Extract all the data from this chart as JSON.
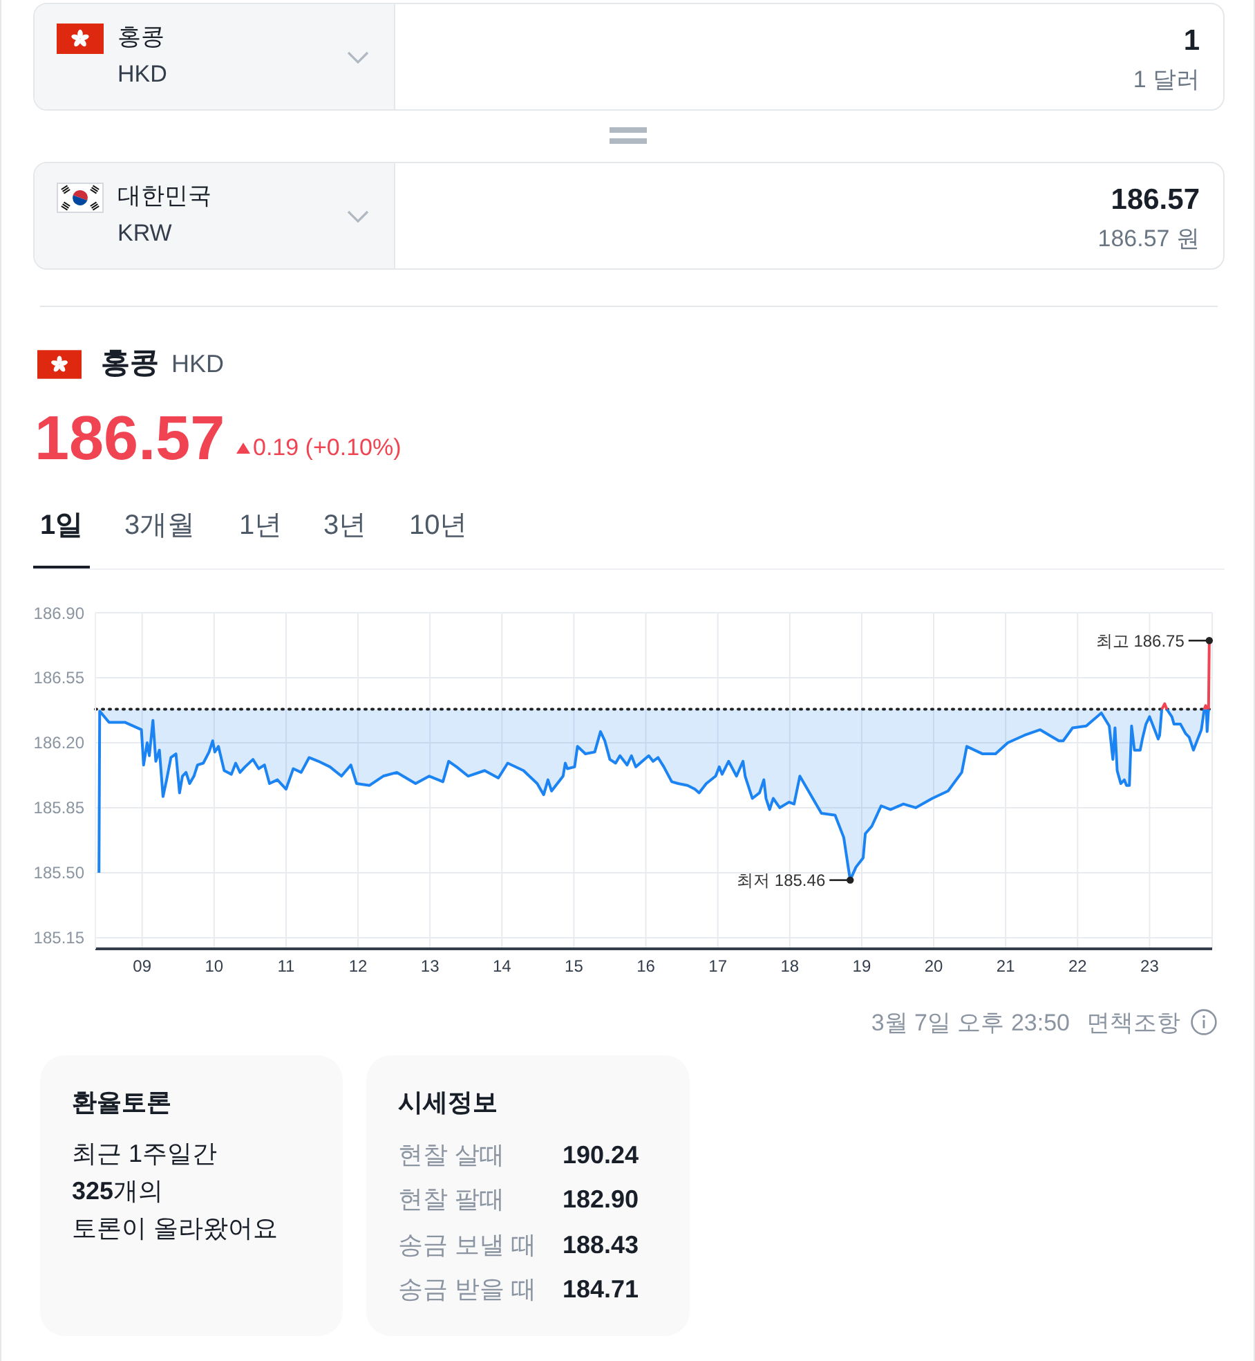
{
  "chart_data": {
    "type": "line",
    "title": "홍콩",
    "subtitle": "HKD",
    "x": [
      8.4,
      8.41,
      8.54,
      8.76,
      8.99,
      9.02,
      9.07,
      9.1,
      9.15,
      9.19,
      9.24,
      9.29,
      9.34,
      9.4,
      9.47,
      9.52,
      9.56,
      9.61,
      9.66,
      9.72,
      9.77,
      9.85,
      9.93,
      9.98,
      10.01,
      10.06,
      10.14,
      10.24,
      10.3,
      10.36,
      10.43,
      10.54,
      10.62,
      10.7,
      10.77,
      10.88,
      11,
      11.1,
      11.21,
      11.32,
      11.45,
      11.61,
      11.77,
      11.9,
      11.98,
      12.16,
      12.35,
      12.54,
      12.8,
      12.99,
      13.18,
      13.26,
      13.37,
      13.53,
      13.76,
      13.95,
      14.08,
      14.3,
      14.49,
      14.58,
      14.64,
      14.69,
      14.85,
      14.88,
      14.91,
      15.01,
      15.05,
      15.16,
      15.29,
      15.37,
      15.43,
      15.5,
      15.58,
      15.64,
      15.74,
      15.8,
      15.86,
      16.04,
      16.1,
      16.17,
      16.25,
      16.36,
      16.45,
      16.58,
      16.68,
      16.74,
      16.84,
      16.97,
      17.02,
      17.06,
      17.15,
      17.26,
      17.35,
      17.38,
      17.48,
      17.58,
      17.64,
      17.67,
      17.72,
      17.77,
      17.86,
      17.99,
      18.06,
      18.14,
      18.44,
      18.63,
      18.75,
      18.84,
      18.92,
      19.02,
      19.05,
      19.14,
      19.27,
      19.4,
      19.58,
      19.75,
      19.98,
      20.2,
      20.39,
      20.46,
      20.68,
      20.86,
      21.03,
      21.26,
      21.48,
      21.74,
      21.8,
      21.93,
      22.12,
      22.33,
      22.44,
      22.49,
      22.52,
      22.55,
      22.6,
      22.65,
      22.68,
      22.72,
      22.75,
      22.79,
      22.87,
      22.9,
      22.95,
      23,
      23.08,
      23.12,
      23.14,
      23.17,
      23.21,
      23.24,
      23.31,
      23.34,
      23.43,
      23.5,
      23.55,
      23.61,
      23.66,
      23.72,
      23.76,
      23.78,
      23.79,
      23.8,
      23.82
    ],
    "series": [
      {
        "color": "#1b84f2",
        "values": [
          185.5,
          186.37,
          186.31,
          186.31,
          186.27,
          186.08,
          186.2,
          186.13,
          186.32,
          186.1,
          186.16,
          185.91,
          186,
          186.12,
          186.14,
          185.93,
          186.02,
          186.04,
          185.98,
          186.02,
          186.08,
          186.09,
          186.15,
          186.21,
          186.15,
          186.18,
          186.05,
          186.03,
          186.09,
          186.04,
          186.07,
          186.11,
          186.06,
          186.08,
          185.98,
          186,
          185.95,
          186.06,
          186.04,
          186.12,
          186.1,
          186.07,
          186.02,
          186.08,
          185.98,
          185.97,
          186.02,
          186.04,
          185.98,
          186.02,
          185.99,
          186.1,
          186.07,
          186.02,
          186.05,
          186.01,
          186.09,
          186.05,
          185.98,
          185.92,
          186,
          185.94,
          186.02,
          186.09,
          186.06,
          186.07,
          186.18,
          186.14,
          186.15,
          186.26,
          186.21,
          186.11,
          186.09,
          186.13,
          186.08,
          186.13,
          186.07,
          186.13,
          186.1,
          186.12,
          186.07,
          185.99,
          185.98,
          185.97,
          185.95,
          185.93,
          185.98,
          186.02,
          186.07,
          186.03,
          186.1,
          186.02,
          186.1,
          186.02,
          185.9,
          185.93,
          186,
          185.9,
          185.84,
          185.9,
          185.85,
          185.88,
          185.87,
          186.02,
          185.82,
          185.81,
          185.69,
          185.46,
          185.53,
          185.58,
          185.71,
          185.75,
          185.86,
          185.84,
          185.87,
          185.85,
          185.9,
          185.94,
          186.04,
          186.18,
          186.14,
          186.14,
          186.2,
          186.24,
          186.27,
          186.21,
          186.21,
          186.28,
          186.29,
          186.36,
          186.29,
          186.11,
          186.28,
          186.05,
          185.98,
          186,
          185.97,
          185.97,
          186.29,
          186.16,
          186.16,
          186.22,
          186.3,
          186.34,
          186.26,
          186.22,
          186.24,
          186.38,
          null,
          186.38,
          186.34,
          186.3,
          186.3,
          186.25,
          186.23,
          186.16,
          186.21,
          186.27,
          186.38,
          null,
          186.38,
          186.26,
          186.38
        ],
        "lower": [
          185.5,
          186.37,
          186.31,
          186.31,
          186.27,
          186.08,
          186.2,
          186.13,
          186.32,
          186.1,
          186.16,
          185.91,
          186,
          186.12,
          186.14,
          185.93,
          186.02,
          186.04,
          185.98,
          186.02,
          186.08,
          186.09,
          186.15,
          186.21,
          186.15,
          186.18,
          186.05,
          186.03,
          186.09,
          186.04,
          186.07,
          186.11,
          186.06,
          186.08,
          185.98,
          186,
          185.95,
          186.06,
          186.04,
          186.12,
          186.1,
          186.07,
          186.02,
          186.08,
          185.98,
          185.97,
          186.02,
          186.04,
          185.98,
          186.02,
          185.99,
          186.1,
          186.07,
          186.02,
          186.05,
          186.01,
          186.09,
          186.05,
          185.98,
          185.92,
          186,
          185.94,
          186.02,
          186.09,
          186.06,
          186.07,
          186.18,
          186.14,
          186.15,
          186.26,
          186.21,
          186.11,
          186.09,
          186.13,
          186.08,
          186.13,
          186.07,
          186.13,
          186.1,
          186.12,
          186.07,
          185.99,
          185.98,
          185.97,
          185.95,
          185.93,
          185.98,
          186.02,
          186.07,
          186.03,
          186.1,
          186.02,
          186.1,
          186.02,
          185.9,
          185.93,
          186,
          185.9,
          185.84,
          185.9,
          185.85,
          185.88,
          185.87,
          186.02,
          185.82,
          185.81,
          185.69,
          185.46,
          185.53,
          185.58,
          185.71,
          185.75,
          185.86,
          185.84,
          185.87,
          185.85,
          185.9,
          185.94,
          186.04,
          186.18,
          186.14,
          186.14,
          186.2,
          186.24,
          186.27,
          186.21,
          186.21,
          186.28,
          186.29,
          186.36,
          186.29,
          186.11,
          186.28,
          186.05,
          185.98,
          186,
          185.97,
          185.97,
          186.29,
          186.16,
          186.16,
          186.22,
          186.3,
          186.34,
          186.26,
          186.22,
          186.24,
          186.38,
          null,
          186.38,
          186.34,
          186.3,
          186.3,
          186.25,
          186.23,
          186.16,
          186.21,
          186.27,
          186.38,
          null,
          186.38,
          186.26,
          186.38
        ],
        "upper": [
          186.38,
          186.38,
          186.38,
          186.38,
          186.38,
          186.38,
          186.38,
          186.38,
          186.38,
          186.38,
          186.38,
          186.38,
          186.38,
          186.38,
          186.38,
          186.38,
          186.38,
          186.38,
          186.38,
          186.38,
          186.38,
          186.38,
          186.38,
          186.38,
          186.38,
          186.38,
          186.38,
          186.38,
          186.38,
          186.38,
          186.38,
          186.38,
          186.38,
          186.38,
          186.38,
          186.38,
          186.38,
          186.38,
          186.38,
          186.38,
          186.38,
          186.38,
          186.38,
          186.38,
          186.38,
          186.38,
          186.38,
          186.38,
          186.38,
          186.38,
          186.38,
          186.38,
          186.38,
          186.38,
          186.38,
          186.38,
          186.38,
          186.38,
          186.38,
          186.38,
          186.38,
          186.38,
          186.38,
          186.38,
          186.38,
          186.38,
          186.38,
          186.38,
          186.38,
          186.38,
          186.38,
          186.38,
          186.38,
          186.38,
          186.38,
          186.38,
          186.38,
          186.38,
          186.38,
          186.38,
          186.38,
          186.38,
          186.38,
          186.38,
          186.38,
          186.38,
          186.38,
          186.38,
          186.38,
          186.38,
          186.38,
          186.38,
          186.38,
          186.38,
          186.38,
          186.38,
          186.38,
          186.38,
          186.38,
          186.38,
          186.38,
          186.38,
          186.38,
          186.38,
          186.38,
          186.38,
          186.38,
          186.38,
          186.38,
          186.38,
          186.38,
          186.38,
          186.38,
          186.38,
          186.38,
          186.38,
          186.38,
          186.38,
          186.38,
          186.38,
          186.38,
          186.38,
          186.38,
          186.38,
          186.38,
          186.38,
          186.38,
          186.38,
          186.38,
          186.38,
          186.38,
          186.38,
          186.38,
          186.38,
          186.38,
          186.38,
          186.38,
          186.38,
          186.38,
          186.38,
          186.38,
          186.38,
          186.38,
          186.38,
          186.38,
          186.38,
          186.38,
          186.38,
          null,
          186.38,
          186.38,
          186.38,
          186.38,
          186.38,
          186.38,
          186.38,
          186.38,
          186.38,
          186.38,
          null,
          186.38,
          186.38,
          186.38
        ]
      },
      {
        "color": "#f04452",
        "x": [
          23.17,
          23.21,
          23.24,
          23.5,
          23.76,
          23.78,
          23.79,
          23.8,
          23.82,
          23.83
        ],
        "values": [
          186.38,
          186.41,
          186.38,
          null,
          186.38,
          186.4,
          186.38,
          null,
          186.38,
          186.75
        ]
      }
    ],
    "xlim": [
      8.35,
      23.87
    ],
    "xticks": [
      {
        "value": 9,
        "label": "09"
      },
      10,
      11,
      12,
      13,
      14,
      15,
      16,
      17,
      18,
      19,
      20,
      21,
      22,
      23
    ],
    "ylim": [
      185.09,
      186.9
    ],
    "yticks": [
      185.15,
      {
        "value": 185.5,
        "label": "185.50"
      },
      185.85,
      {
        "value": 186.2,
        "label": "186.20"
      },
      186.55,
      {
        "value": 186.9,
        "label": "186.90"
      }
    ],
    "grid": true,
    "ref_lines": [
      {
        "axis": "y",
        "value": 186.38,
        "color": "#222222",
        "line_style": "dotted"
      }
    ],
    "annotations": [
      "홍콩",
      "HKD",
      "1",
      "1 달러",
      "대한민국",
      "KRW",
      "186.57",
      "186.57 원",
      "186.57",
      "0.19 (+0.10%)",
      "1일",
      "3개월",
      "1년",
      "3년",
      "10년",
      "3월 7일 오후 23:50",
      "면책조항",
      "환율토론",
      "최근 1주일간",
      "325",
      "개의",
      "토론이 올라왔어요",
      "시세정보",
      "현찰 살때",
      "190.24",
      "현찰 팔때",
      "182.90",
      "송금 보낼 때",
      "188.43",
      "송금 받을 때",
      "184.71",
      {
        "text": "최고 186.75",
        "x": 23.83,
        "y": 186.75
      },
      {
        "text": "최저 185.46",
        "x": 18.84,
        "y": 185.46
      }
    ]
  }
}
